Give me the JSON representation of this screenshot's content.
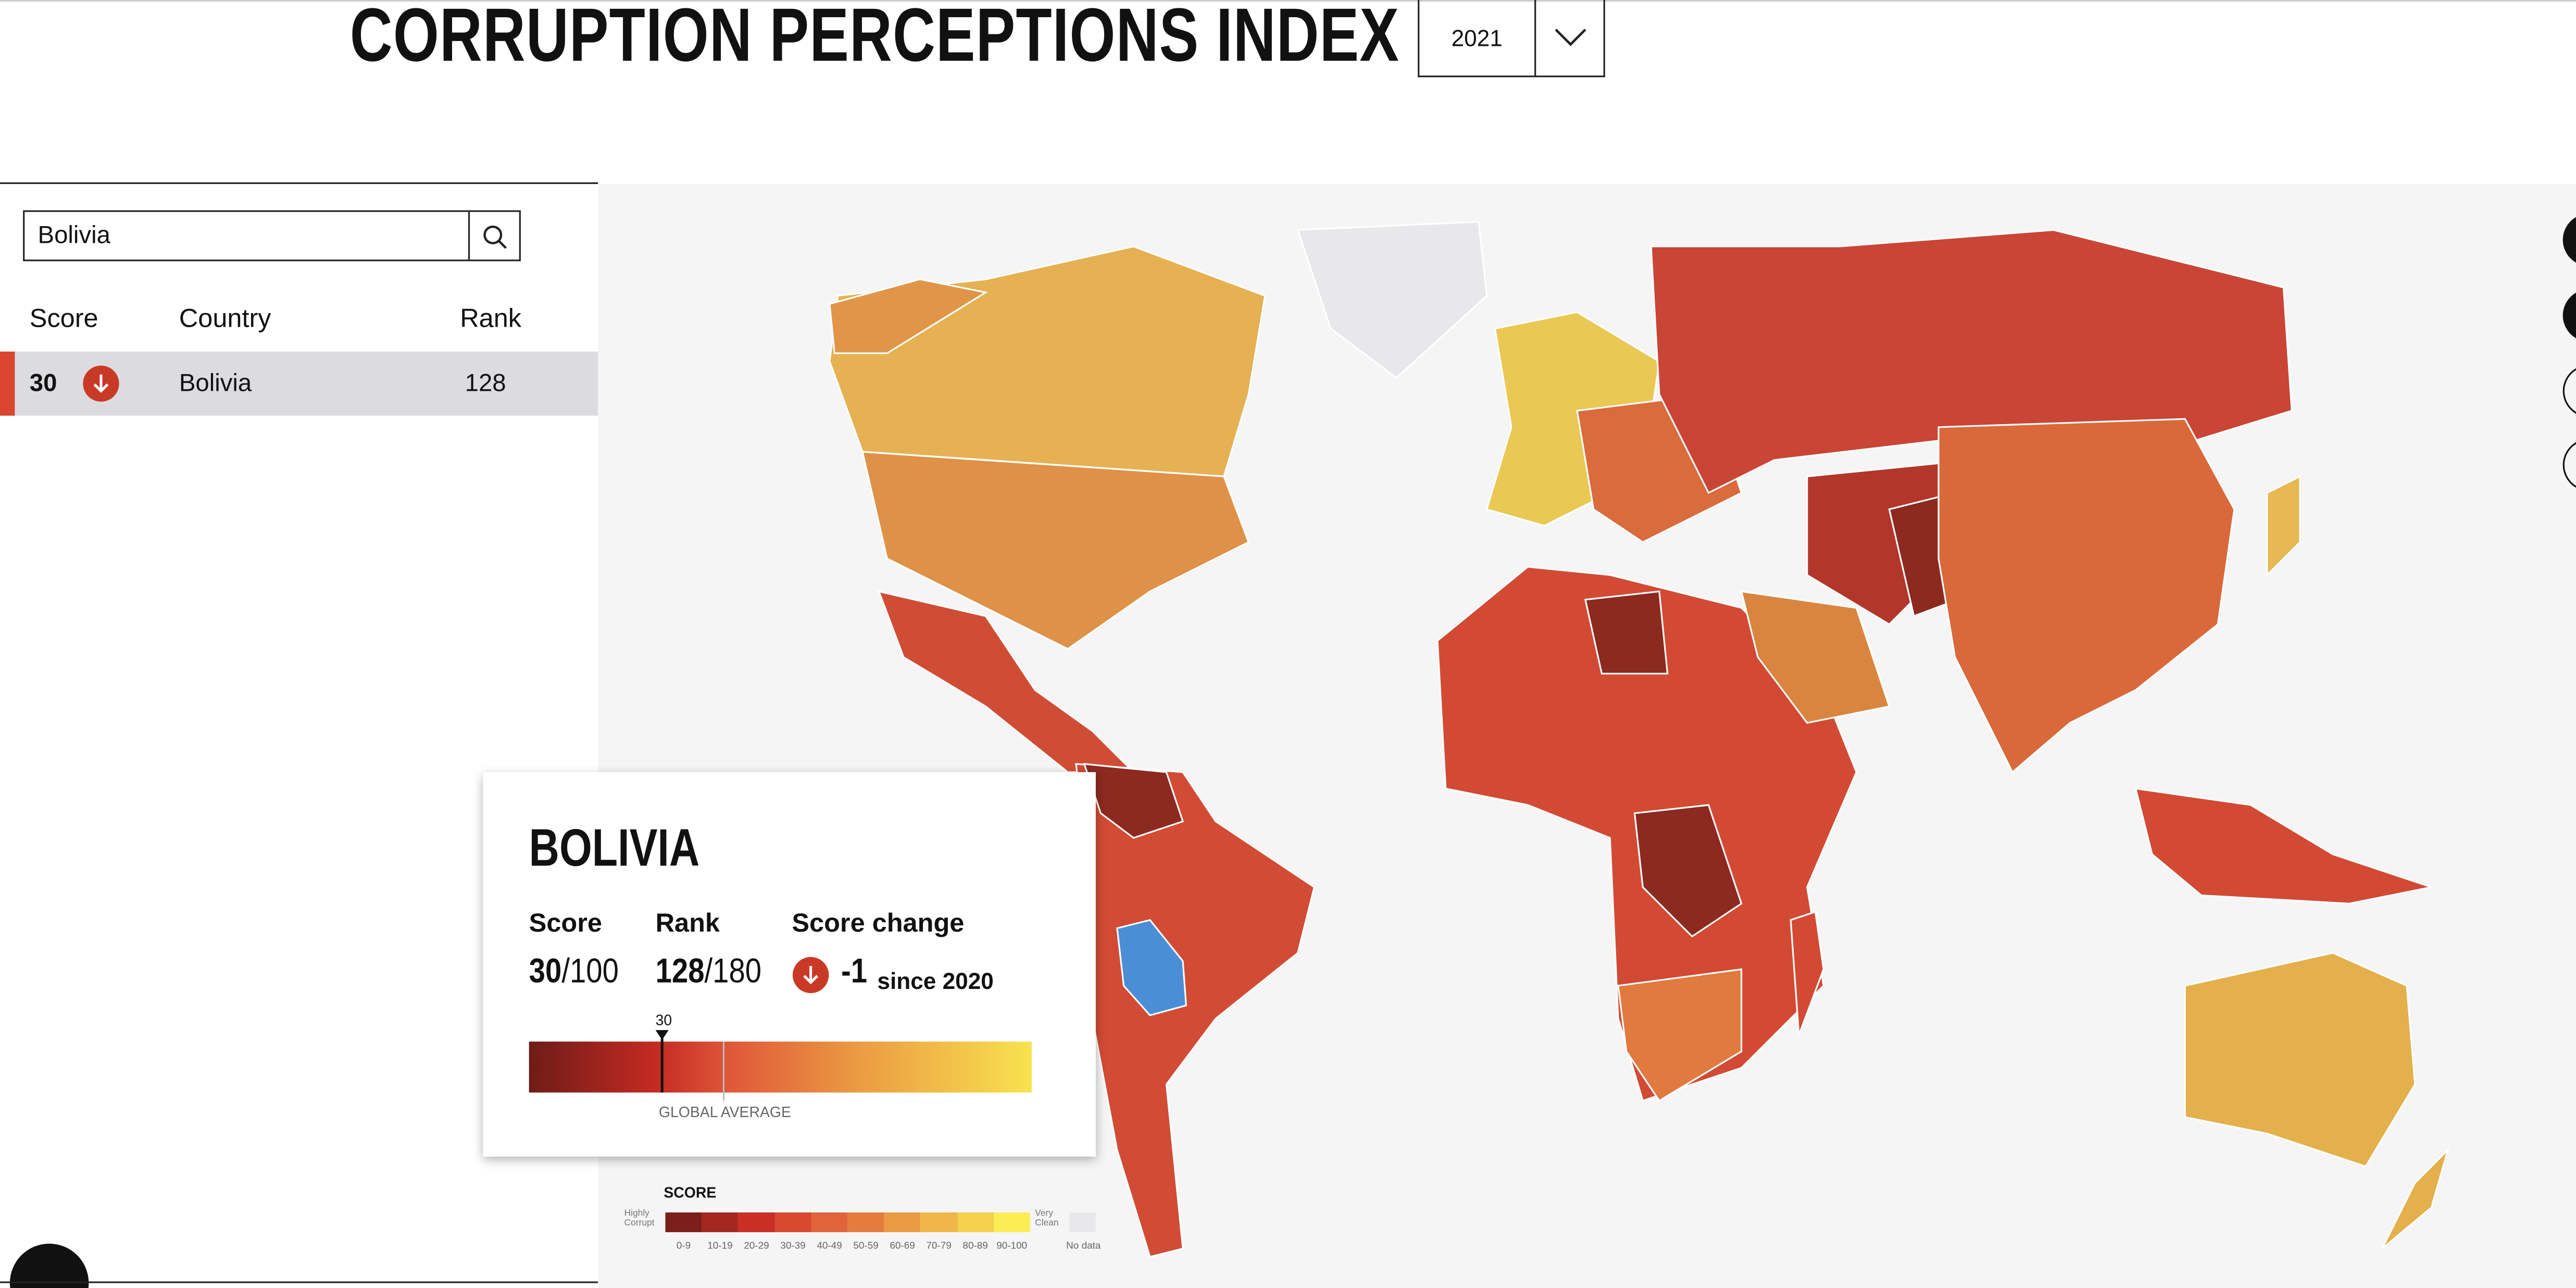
{
  "header": {
    "title": "CORRUPTION PERCEPTIONS INDEX",
    "year": "2021"
  },
  "search": {
    "query": "Bolivia"
  },
  "table": {
    "columns": [
      "Score",
      "Country",
      "Rank"
    ],
    "rows": [
      [
        "30",
        "Bolivia",
        "128"
      ]
    ]
  },
  "tooltip": {
    "country": "BOLIVIA",
    "labels": [
      "Score",
      "Rank",
      "Score change"
    ],
    "score": "30",
    "score_total": "/100",
    "rank": "128",
    "rank_total": "/180",
    "change": "-1",
    "change_since": "since 2020",
    "marker": "30",
    "average_label": "GLOBAL AVERAGE"
  },
  "legend": {
    "title": "SCORE",
    "low": "Highly Corrupt",
    "high": "Very Clean",
    "bins": [
      "0-9",
      "10-19",
      "20-29",
      "30-39",
      "40-49",
      "50-59",
      "60-69",
      "70-79",
      "80-89",
      "90-100"
    ],
    "colors": [
      "#7a1f1a",
      "#a3271f",
      "#c92f25",
      "#d8492f",
      "#e0633a",
      "#e57c3e",
      "#ea9a42",
      "#efb748",
      "#f4d24e",
      "#fbee55"
    ],
    "no_data": "No data"
  }
}
